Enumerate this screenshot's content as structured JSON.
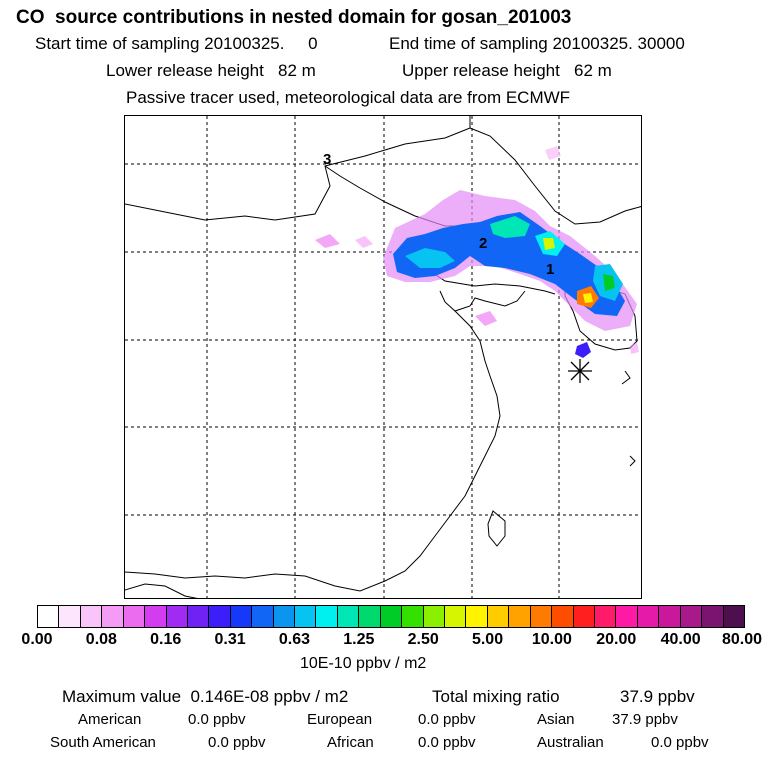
{
  "header": {
    "title": "CO  source contributions in nested domain for gosan_201003",
    "start_label": "Start time of sampling 20100325.     0",
    "end_label": "End time of sampling 20100325. 30000",
    "lower_label": "Lower release height   82 m",
    "upper_label": "Upper release height   62 m",
    "note": "Passive tracer used, meteorological data are from ECMWF"
  },
  "map": {
    "markers": [
      "1",
      "2",
      "3"
    ],
    "receptor_icon": "asterisk-receptor"
  },
  "colorbar": {
    "colors": [
      "#ffffff",
      "#fde6fd",
      "#f9c4fa",
      "#f49bf6",
      "#ec6cf0",
      "#d43cf0",
      "#a12bf2",
      "#7022f5",
      "#3c1ff8",
      "#1538fb",
      "#1166f5",
      "#0b95ef",
      "#06c3f2",
      "#00f0f0",
      "#00e6b4",
      "#00d96e",
      "#00cc28",
      "#33e000",
      "#8af000",
      "#d6f500",
      "#fff300",
      "#ffcc00",
      "#ffa200",
      "#ff7a00",
      "#ff4d00",
      "#ff1f1f",
      "#ff1a6a",
      "#ff1aa6",
      "#e61aa8",
      "#c9189c",
      "#a81a8c",
      "#7a1470",
      "#4d0f4d"
    ],
    "ticks": [
      "0.00",
      "0.08",
      "0.16",
      "0.31",
      "0.63",
      "1.25",
      "2.50",
      "5.00",
      "10.00",
      "20.00",
      "40.00",
      "80.00"
    ],
    "unit": "10E-10 ppbv / m2"
  },
  "footer": {
    "max_value": "Maximum value  0.146E-08 ppbv / m2",
    "total": "Total mixing ratio",
    "total_value": "37.9 ppbv",
    "american": "American",
    "american_val": "0.0 ppbv",
    "european": "European",
    "european_val": "0.0 ppbv",
    "asian": "Asian",
    "asian_val": "37.9 ppbv",
    "south_american": "South American",
    "south_american_val": "0.0 ppbv",
    "african": "African",
    "african_val": "0.0 ppbv",
    "australian": "Australian",
    "australian_val": "0.0 ppbv"
  }
}
